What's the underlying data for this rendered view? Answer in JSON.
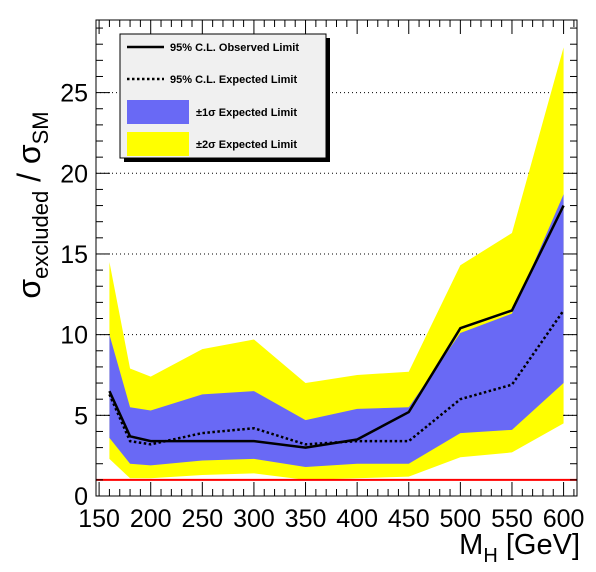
{
  "chart_data": {
    "type": "area",
    "x": [
      160,
      180,
      200,
      250,
      300,
      350,
      400,
      450,
      500,
      550,
      600
    ],
    "series": [
      {
        "name": "95% C.L. Observed Limit",
        "values": [
          6.5,
          3.7,
          3.4,
          3.4,
          3.4,
          3.0,
          3.5,
          5.2,
          10.4,
          11.5,
          18.0
        ]
      },
      {
        "name": "95% C.L. Expected Limit",
        "values": [
          6.3,
          3.4,
          3.2,
          3.9,
          4.2,
          3.2,
          3.4,
          3.4,
          6.0,
          6.9,
          11.5
        ]
      },
      {
        "name": "±1σ Expected Limit",
        "lower": [
          3.6,
          2.0,
          1.9,
          2.2,
          2.3,
          1.8,
          2.0,
          2.0,
          3.9,
          4.1,
          7.0
        ],
        "upper": [
          10.0,
          5.5,
          5.3,
          6.3,
          6.5,
          4.7,
          5.4,
          5.5,
          10.1,
          11.3,
          18.7
        ]
      },
      {
        "name": "±2σ Expected Limit",
        "lower": [
          2.3,
          1.1,
          1.1,
          1.3,
          1.4,
          1.0,
          1.1,
          1.2,
          2.4,
          2.7,
          4.5
        ],
        "upper": [
          14.5,
          7.9,
          7.4,
          9.1,
          9.7,
          7.0,
          7.5,
          7.7,
          14.3,
          16.3,
          27.8
        ]
      }
    ],
    "reference_line": {
      "y": 1,
      "color": "#ff0000"
    },
    "xlabel_main": "M",
    "xlabel_sub": "H",
    "xlabel_unit": " [GeV]",
    "ylabel_main1": "σ",
    "ylabel_sub1": "excluded",
    "ylabel_slash": " / ",
    "ylabel_main2": "σ",
    "ylabel_sub2": "SM",
    "xticks": [
      150,
      200,
      250,
      300,
      350,
      400,
      450,
      500,
      550,
      600
    ],
    "yticks": [
      0,
      5,
      10,
      15,
      20,
      25
    ],
    "xlim": [
      147,
      613
    ],
    "ylim": [
      0,
      29.5
    ],
    "grid_y": true,
    "legend_position": "top-left",
    "colors": {
      "one_sigma": "#6969f5",
      "two_sigma": "#ffff00",
      "reference": "#ff0000",
      "line": "#000000",
      "legend_bg": "#f0f0f0"
    }
  }
}
